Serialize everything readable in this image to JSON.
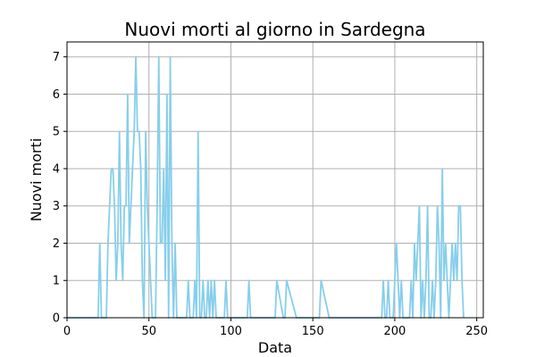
{
  "chart_data": {
    "type": "line",
    "title": "Nuovi morti al giorno in Sardegna",
    "xlabel": "Data",
    "ylabel": "Nuovi morti",
    "xlim": [
      0,
      254
    ],
    "ylim": [
      0,
      7.4
    ],
    "xticks": [
      0,
      50,
      100,
      150,
      200,
      250
    ],
    "yticks": [
      0,
      1,
      2,
      3,
      4,
      5,
      6,
      7
    ],
    "grid": true,
    "colors": {
      "line": "#87ceeb"
    },
    "series": [
      {
        "name": "",
        "x": [
          0,
          1,
          2,
          3,
          4,
          5,
          6,
          7,
          8,
          9,
          10,
          11,
          12,
          13,
          14,
          15,
          16,
          17,
          18,
          19,
          20,
          21,
          22,
          23,
          24,
          25,
          26,
          27,
          28,
          29,
          30,
          31,
          32,
          33,
          34,
          35,
          36,
          37,
          38,
          39,
          40,
          41,
          42,
          43,
          44,
          45,
          46,
          47,
          48,
          49,
          50,
          51,
          52,
          53,
          54,
          55,
          56,
          57,
          58,
          59,
          60,
          61,
          62,
          63,
          64,
          65,
          66,
          67,
          68,
          69,
          70,
          71,
          72,
          73,
          74,
          75,
          76,
          77,
          78,
          79,
          80,
          81,
          82,
          83,
          84,
          85,
          86,
          87,
          88,
          89,
          90,
          91,
          92,
          93,
          94,
          95,
          96,
          97,
          98,
          99,
          100,
          105,
          109,
          110,
          111,
          112,
          120,
          126,
          127,
          128,
          132,
          133,
          134,
          140,
          153,
          154,
          155,
          160,
          170,
          180,
          189,
          190,
          191,
          192,
          193,
          194,
          195,
          196,
          197,
          198,
          199,
          200,
          201,
          202,
          203,
          204,
          205,
          206,
          207,
          208,
          209,
          210,
          211,
          212,
          213,
          214,
          215,
          216,
          217,
          218,
          219,
          220,
          221,
          222,
          223,
          224,
          225,
          226,
          227,
          228,
          229,
          230,
          231,
          232,
          233,
          234,
          235,
          236,
          237,
          238,
          239,
          240,
          241,
          242
        ],
        "values": [
          0,
          0,
          0,
          0,
          0,
          0,
          0,
          0,
          0,
          0,
          0,
          0,
          0,
          0,
          0,
          0,
          0,
          0,
          0,
          0,
          2,
          0,
          0,
          0,
          0,
          2,
          3,
          4,
          4,
          3,
          1,
          2,
          5,
          2,
          1,
          3,
          3,
          6,
          2,
          3,
          4,
          5,
          7,
          5,
          5,
          4,
          1,
          0,
          5,
          3,
          2,
          1,
          0,
          0,
          0,
          3,
          7,
          2,
          2,
          4,
          1,
          6,
          0,
          7,
          2,
          0,
          2,
          0,
          0,
          0,
          0,
          0,
          0,
          0,
          1,
          0,
          0,
          0,
          1,
          0,
          5,
          0,
          0,
          1,
          0,
          0,
          1,
          0,
          1,
          0,
          1,
          0,
          0,
          0,
          0,
          0,
          0,
          1,
          0,
          0,
          0,
          0,
          0,
          0,
          1,
          0,
          0,
          0,
          0,
          1,
          0,
          0,
          1,
          0,
          0,
          0,
          1,
          0,
          0,
          0,
          0,
          0,
          0,
          0,
          1,
          0,
          0,
          1,
          0,
          0,
          0,
          1,
          2,
          1,
          0,
          1,
          0,
          0,
          0,
          0,
          0,
          1,
          0,
          2,
          1,
          2,
          3,
          0,
          1,
          0,
          1,
          3,
          0,
          0,
          1,
          0,
          1,
          3,
          2,
          0,
          4,
          1,
          2,
          1,
          0,
          1,
          2,
          1,
          2,
          1,
          3,
          3,
          1,
          0
        ]
      }
    ]
  }
}
